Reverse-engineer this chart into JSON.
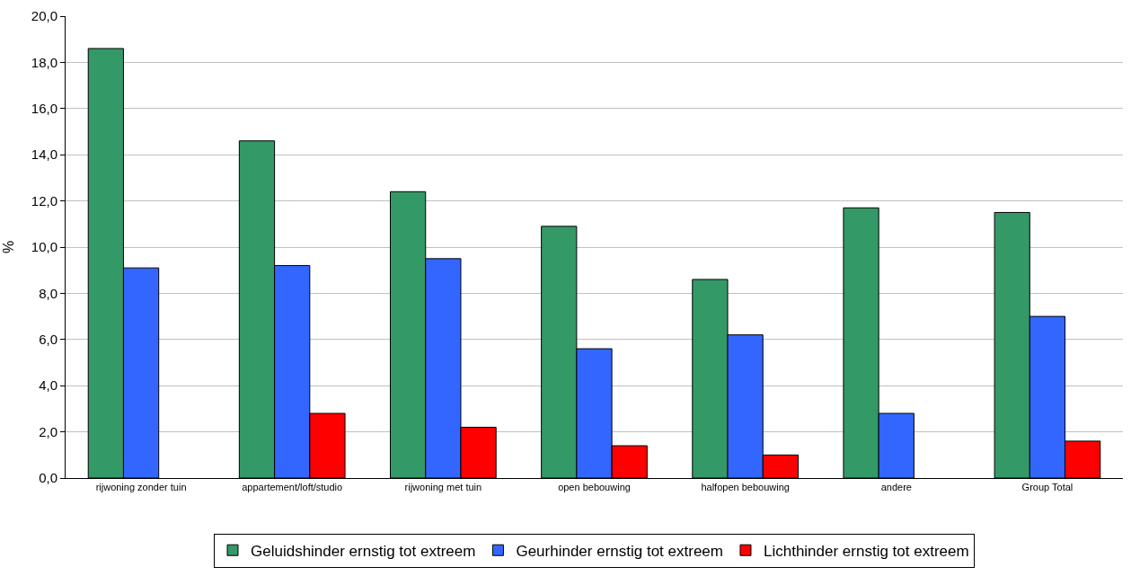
{
  "chart_data": {
    "type": "bar",
    "ylabel": "%",
    "categories": [
      "rijwoning zonder tuin",
      "appartement/loft/studio",
      "rijwoning met tuin",
      "open bebouwing",
      "halfopen bebouwing",
      "andere",
      "Group Total"
    ],
    "series": [
      {
        "name": "Geluidshinder ernstig tot extreem",
        "color": "#339966",
        "values": [
          18.6,
          14.6,
          12.4,
          10.9,
          8.6,
          11.7,
          11.5
        ]
      },
      {
        "name": "Geurhinder ernstig tot extreem",
        "color": "#3366ff",
        "values": [
          9.1,
          9.2,
          9.5,
          5.6,
          6.2,
          2.8,
          7.0
        ]
      },
      {
        "name": "Lichthinder ernstig tot extreem",
        "color": "#ff0000",
        "values": [
          null,
          2.8,
          2.2,
          1.4,
          1.0,
          null,
          1.6
        ]
      }
    ],
    "ylim": [
      0,
      20
    ],
    "yticks": [
      {
        "value": 0,
        "label": "0,0"
      },
      {
        "value": 2,
        "label": "2,0"
      },
      {
        "value": 4,
        "label": "4,0"
      },
      {
        "value": 6,
        "label": "6,0"
      },
      {
        "value": 8,
        "label": "8,0"
      },
      {
        "value": 10,
        "label": "10,0"
      },
      {
        "value": 12,
        "label": "12,0"
      },
      {
        "value": 14,
        "label": "14,0"
      },
      {
        "value": 16,
        "label": "16,0"
      },
      {
        "value": 18,
        "label": "18,0"
      },
      {
        "value": 20,
        "label": "20,0"
      }
    ],
    "grid": "y",
    "legend": "bottom"
  }
}
